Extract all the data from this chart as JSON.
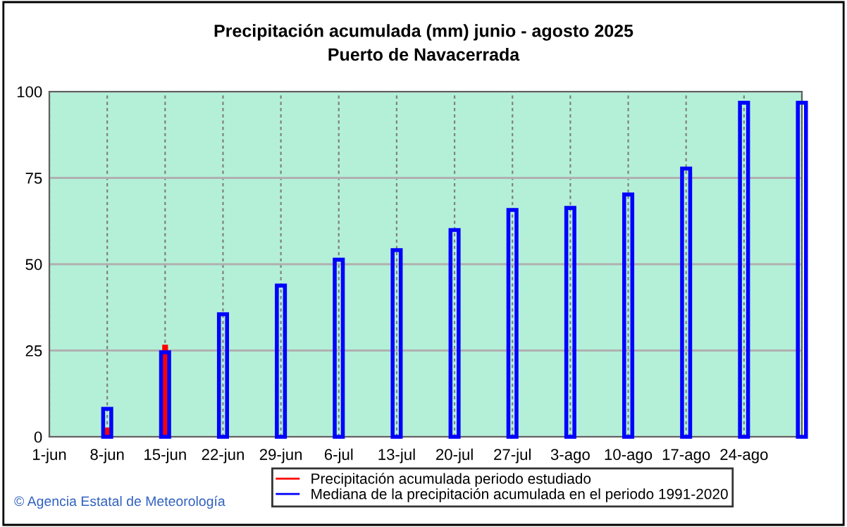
{
  "chart_data": {
    "type": "bar",
    "title": "Precipitación acumulada (mm) junio - agosto 2025",
    "subtitle": "Puerto de Navacerrada",
    "categories": [
      "1-jun",
      "8-jun",
      "15-jun",
      "22-jun",
      "29-jun",
      "6-jul",
      "13-jul",
      "20-jul",
      "27-jul",
      "3-ago",
      "10-ago",
      "17-ago",
      "24-ago",
      null
    ],
    "series": [
      {
        "name": "Precipitación acumulada periodo estudiado",
        "color": "#ff0000",
        "values": [
          null,
          2.7,
          26.7,
          null,
          null,
          null,
          null,
          null,
          null,
          null,
          null,
          null,
          null,
          null
        ]
      },
      {
        "name": "Mediana de la precipitación acumulada en el periodo 1991-2020",
        "color": "#0000ff",
        "values": [
          null,
          8.1,
          24.5,
          35.5,
          43.8,
          51.3,
          54.1,
          59.9,
          65.7,
          66.3,
          70.2,
          77.7,
          96.8,
          96.8
        ]
      }
    ],
    "ylim": [
      0,
      100
    ],
    "yticks": [
      0,
      25,
      50,
      75,
      100
    ],
    "grid": true,
    "legend": "bottom",
    "annotations": [
      "© Agencia Estatal de Meteorología"
    ]
  }
}
